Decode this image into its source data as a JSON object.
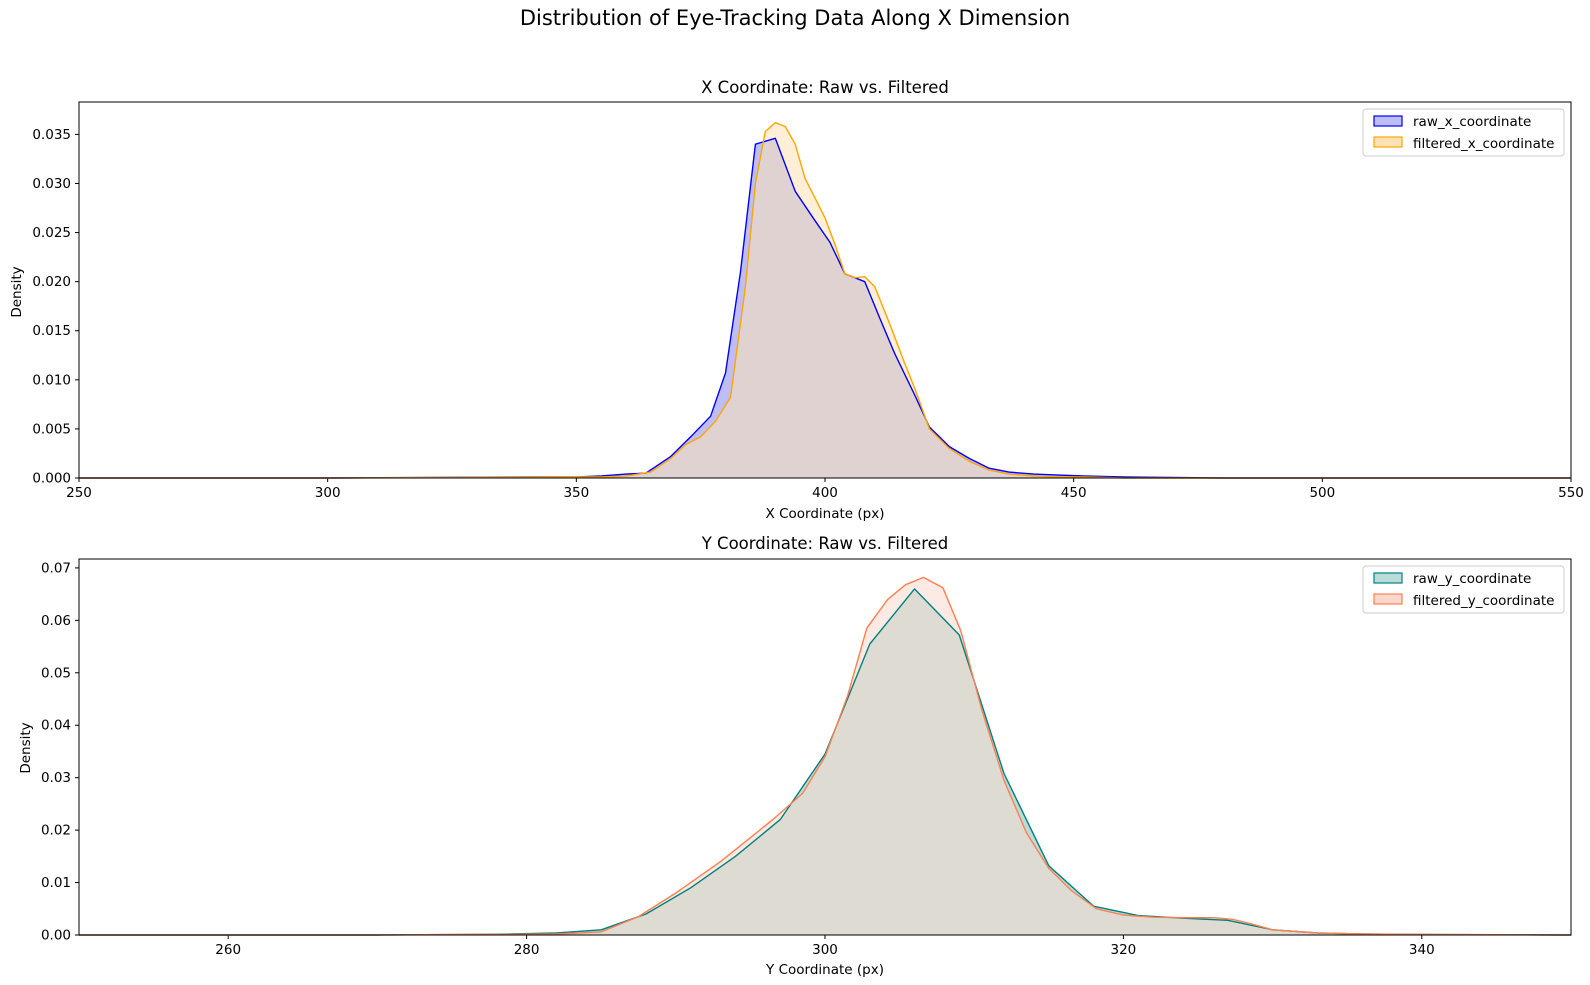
{
  "suptitle": "Distribution of Eye-Tracking Data Along X Dimension",
  "chart_data": [
    {
      "type": "area",
      "title": "X Coordinate: Raw vs. Filtered",
      "xlabel": "X Coordinate (px)",
      "ylabel": "Density",
      "xlim": [
        250,
        550
      ],
      "ylim": [
        0,
        0.0383
      ],
      "xticks": [
        250,
        300,
        350,
        400,
        450,
        500,
        550
      ],
      "yticks": [
        0.0,
        0.005,
        0.01,
        0.015,
        0.02,
        0.025,
        0.03,
        0.035
      ],
      "ytick_decimals": 3,
      "grid": false,
      "legend": "top-right",
      "series": [
        {
          "name": "raw_x_coordinate",
          "color": "#0000ff",
          "fill": "#bebef5",
          "x": [
            250,
            300,
            340,
            350,
            355,
            360,
            364,
            369,
            373,
            377,
            380,
            383,
            386,
            390,
            394,
            398,
            401,
            404,
            408,
            411,
            414,
            418,
            421,
            425,
            429,
            433,
            437,
            442,
            447,
            452,
            460,
            480,
            500,
            550
          ],
          "values": [
            0.0,
            0.0,
            0.0001,
            0.0001,
            0.0002,
            0.0004,
            0.0005,
            0.0022,
            0.0042,
            0.0063,
            0.0107,
            0.021,
            0.034,
            0.0346,
            0.0292,
            0.0262,
            0.024,
            0.0208,
            0.02,
            0.0163,
            0.0127,
            0.0085,
            0.0052,
            0.0032,
            0.002,
            0.001,
            0.0006,
            0.0004,
            0.0003,
            0.0002,
            0.0001,
            0.0,
            0.0,
            0.0
          ]
        },
        {
          "name": "filtered_x_coordinate",
          "color": "#ffa500",
          "fill": "#fde2b4",
          "x": [
            250,
            300,
            350,
            355,
            360,
            365,
            369,
            372,
            375,
            378,
            381,
            384,
            386,
            388,
            390,
            392,
            394,
            396,
            398,
            400,
            402,
            404,
            406,
            408,
            410,
            413,
            416,
            418,
            421,
            425,
            429,
            433,
            437,
            442,
            447,
            452,
            460,
            480,
            500,
            550
          ],
          "values": [
            0.0,
            0.0,
            0.0001,
            0.0001,
            0.0002,
            0.0006,
            0.002,
            0.0034,
            0.0042,
            0.0058,
            0.0082,
            0.0195,
            0.03,
            0.0353,
            0.0362,
            0.0358,
            0.034,
            0.0305,
            0.0285,
            0.0265,
            0.0238,
            0.0208,
            0.0204,
            0.0205,
            0.0195,
            0.0157,
            0.0117,
            0.0092,
            0.005,
            0.003,
            0.0017,
            0.0008,
            0.0004,
            0.0002,
            0.0001,
            0.0001,
            0.0,
            0.0,
            0.0,
            0.0
          ]
        }
      ]
    },
    {
      "type": "area",
      "title": "Y Coordinate: Raw vs. Filtered",
      "xlabel": "Y Coordinate (px)",
      "ylabel": "Density",
      "xlim": [
        250,
        350
      ],
      "ylim": [
        0,
        0.0717
      ],
      "xticks": [
        260,
        280,
        300,
        320,
        340
      ],
      "yticks": [
        0.0,
        0.01,
        0.02,
        0.03,
        0.04,
        0.05,
        0.06,
        0.07
      ],
      "ytick_decimals": 2,
      "grid": false,
      "legend": "top-right",
      "series": [
        {
          "name": "raw_y_coordinate",
          "color": "#008080",
          "fill": "#b8ddd8",
          "x": [
            250,
            270,
            276,
            279,
            282,
            285,
            288,
            291,
            294,
            297,
            300,
            303,
            306,
            309,
            312,
            315,
            318,
            321,
            324,
            327,
            330,
            333,
            336,
            340,
            350
          ],
          "values": [
            0.0,
            0.0,
            0.0001,
            0.0002,
            0.0004,
            0.001,
            0.004,
            0.009,
            0.015,
            0.022,
            0.0345,
            0.0555,
            0.066,
            0.0572,
            0.0308,
            0.0132,
            0.0055,
            0.0037,
            0.0032,
            0.0028,
            0.001,
            0.0004,
            0.0002,
            0.0001,
            0.0
          ]
        },
        {
          "name": "filtered_y_coordinate",
          "color": "#ff7f50",
          "fill": "#fbd8ce",
          "x": [
            250,
            270,
            276,
            279,
            282,
            285,
            287.5,
            290,
            293,
            296.5,
            298.5,
            300,
            301.5,
            302.8,
            304.2,
            305.4,
            306.6,
            307.9,
            309.1,
            310.5,
            312,
            313.5,
            315,
            316.5,
            318.2,
            320,
            322,
            324,
            326,
            327.3,
            328.5,
            330,
            333,
            336,
            340,
            350
          ],
          "values": [
            0.0,
            0.0,
            0.0001,
            0.0001,
            0.0002,
            0.0006,
            0.0035,
            0.008,
            0.014,
            0.022,
            0.027,
            0.034,
            0.0455,
            0.0585,
            0.064,
            0.0668,
            0.0682,
            0.0662,
            0.058,
            0.043,
            0.0295,
            0.0195,
            0.0127,
            0.0085,
            0.005,
            0.0038,
            0.0034,
            0.0033,
            0.0033,
            0.003,
            0.0022,
            0.001,
            0.0004,
            0.0002,
            0.0001,
            0.0
          ]
        }
      ]
    }
  ]
}
